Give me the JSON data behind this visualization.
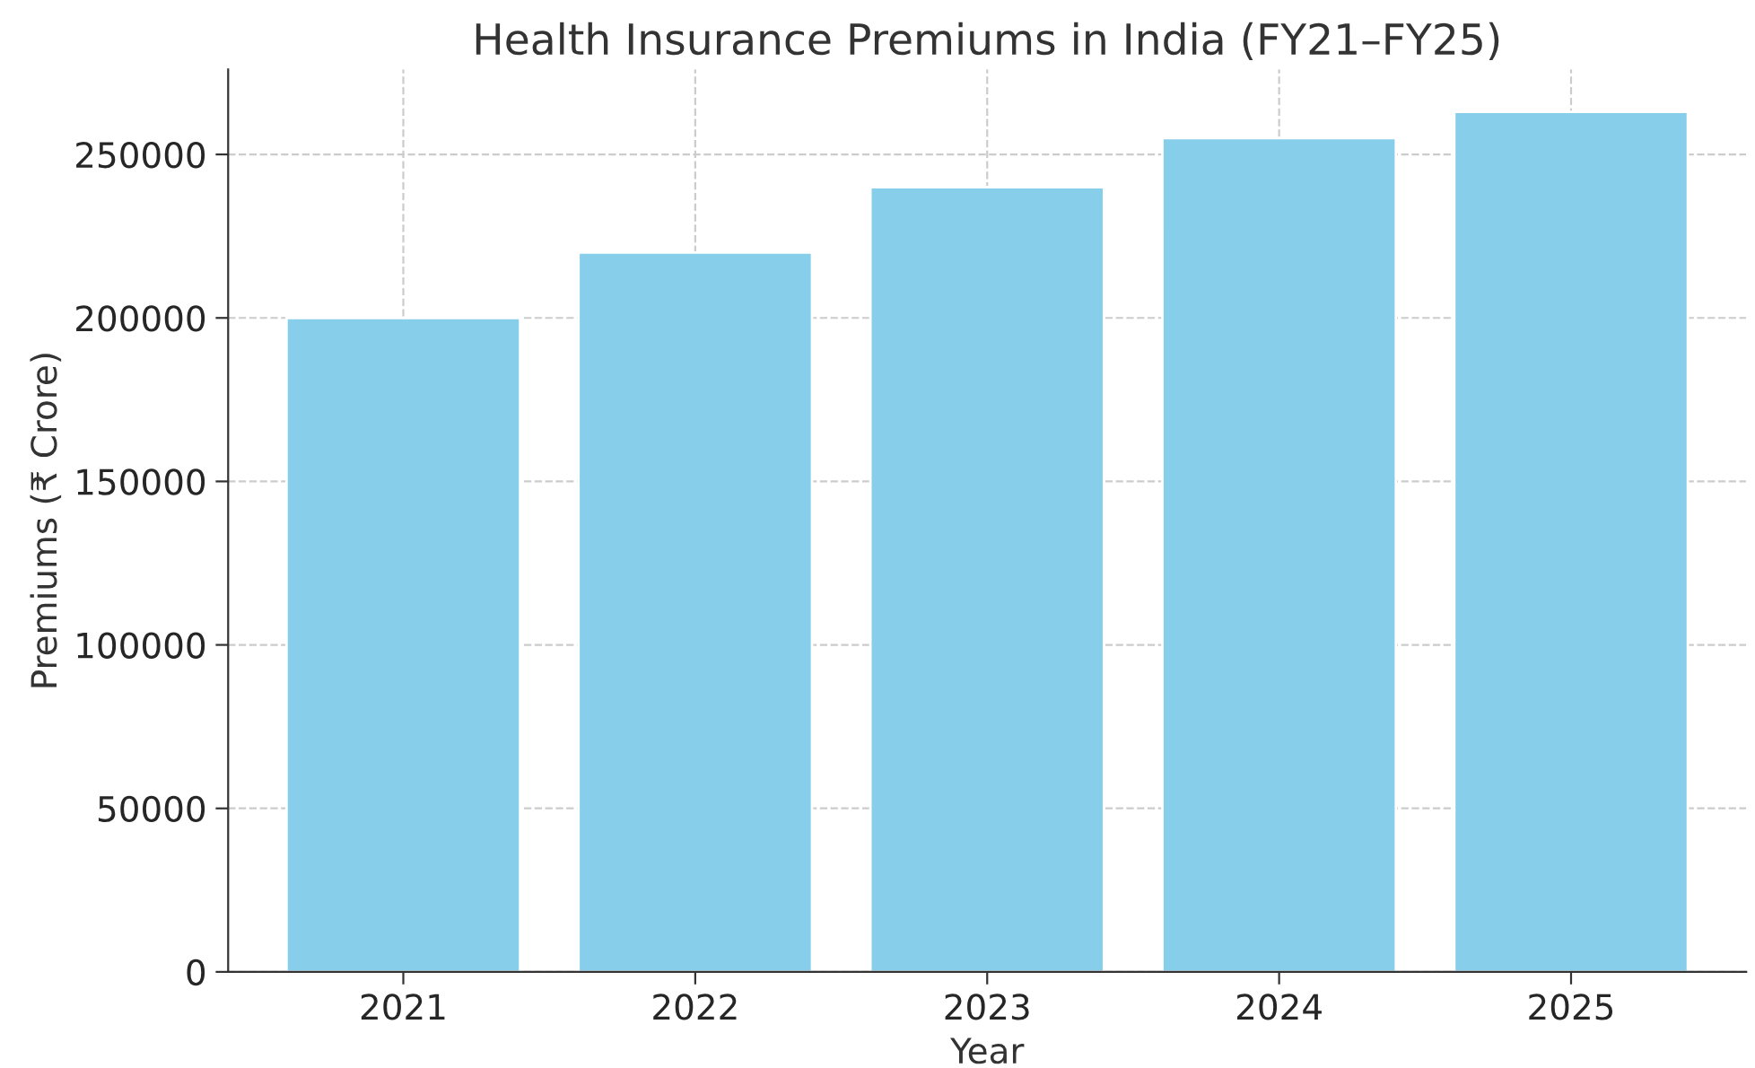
{
  "chart_data": {
    "type": "bar",
    "title": "Health Insurance Premiums in India (FY21–FY25)",
    "xlabel": "Year",
    "ylabel": "Premiums (₹ Crore)",
    "categories": [
      "2021",
      "2022",
      "2023",
      "2024",
      "2025"
    ],
    "values": [
      200000,
      220000,
      240000,
      255000,
      263000
    ],
    "color": "#87ceeb",
    "ylim": [
      0,
      276000
    ],
    "yticks": [
      0,
      50000,
      100000,
      150000,
      200000,
      250000
    ],
    "grid": true,
    "legend": false
  }
}
